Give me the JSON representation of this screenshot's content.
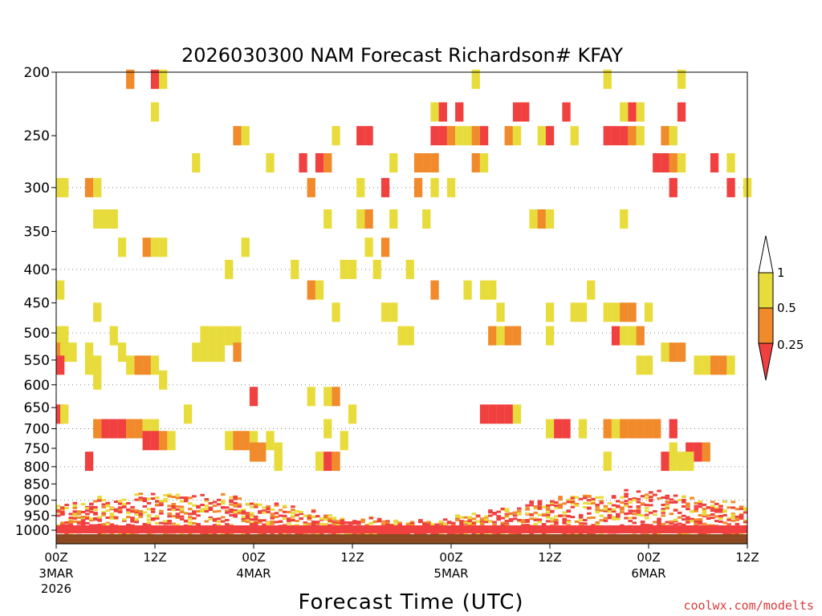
{
  "chart_data": {
    "type": "heatmap",
    "title": "2026030300 NAM Forecast Richardson# KFAY",
    "xlabel": "Forecast Time (UTC)",
    "ylabel": "",
    "credit": "coolwx.com/modelts",
    "x_unit": "forecast hour",
    "xlim": [
      0,
      84
    ],
    "y_unit": "pressure (hPa)",
    "ylim": [
      1050,
      200
    ],
    "y_ticks": [
      200,
      250,
      300,
      350,
      400,
      450,
      500,
      550,
      600,
      650,
      700,
      750,
      800,
      850,
      900,
      950,
      1000
    ],
    "grid_levels": [
      300,
      400,
      500,
      600,
      700,
      800,
      900
    ],
    "x_ticks": [
      {
        "hour": 0,
        "label": "00Z",
        "sub": [
          "3MAR",
          "2026"
        ]
      },
      {
        "hour": 12,
        "label": "12Z",
        "sub": []
      },
      {
        "hour": 24,
        "label": "00Z",
        "sub": [
          "4MAR"
        ]
      },
      {
        "hour": 36,
        "label": "12Z",
        "sub": []
      },
      {
        "hour": 48,
        "label": "00Z",
        "sub": [
          "5MAR"
        ]
      },
      {
        "hour": 60,
        "label": "12Z",
        "sub": []
      },
      {
        "hour": 72,
        "label": "00Z",
        "sub": [
          "6MAR"
        ]
      },
      {
        "hour": 84,
        "label": "12Z",
        "sub": []
      }
    ],
    "colorbar": {
      "bins": [
        {
          "range": "0.5-1",
          "color": "#e8dc3c"
        },
        {
          "range": "0.25-0.5",
          "color": "#f08a2a"
        },
        {
          "range": "<0.25",
          "color": "#f04040"
        }
      ],
      "labels": [
        "1",
        "0.5",
        "0.25"
      ]
    },
    "colors": {
      "high": "#e8dc3c",
      "mid": "#f08a2a",
      "low": "#f04040",
      "ground": "#8b4a22"
    },
    "cells": [
      {
        "h": 9,
        "p": 205,
        "c": "mid"
      },
      {
        "h": 12,
        "p": 205,
        "c": "low"
      },
      {
        "h": 13,
        "p": 205,
        "c": "high"
      },
      {
        "h": 51,
        "p": 205,
        "c": "high"
      },
      {
        "h": 67,
        "p": 205,
        "c": "high"
      },
      {
        "h": 76,
        "p": 205,
        "c": "high"
      },
      {
        "h": 12,
        "p": 230,
        "c": "high"
      },
      {
        "h": 46,
        "p": 230,
        "c": "high"
      },
      {
        "h": 47,
        "p": 230,
        "c": "low"
      },
      {
        "h": 49,
        "p": 230,
        "c": "low"
      },
      {
        "h": 56,
        "p": 230,
        "c": "low"
      },
      {
        "h": 57,
        "p": 230,
        "c": "low"
      },
      {
        "h": 62,
        "p": 230,
        "c": "low"
      },
      {
        "h": 69,
        "p": 230,
        "c": "high"
      },
      {
        "h": 70,
        "p": 230,
        "c": "low"
      },
      {
        "h": 71,
        "p": 230,
        "c": "high"
      },
      {
        "h": 76,
        "p": 230,
        "c": "low"
      },
      {
        "h": 22,
        "p": 250,
        "c": "mid"
      },
      {
        "h": 23,
        "p": 250,
        "c": "high"
      },
      {
        "h": 34,
        "p": 250,
        "c": "high"
      },
      {
        "h": 37,
        "p": 250,
        "c": "low"
      },
      {
        "h": 38,
        "p": 250,
        "c": "low"
      },
      {
        "h": 46,
        "p": 250,
        "c": "low"
      },
      {
        "h": 47,
        "p": 250,
        "c": "low"
      },
      {
        "h": 48,
        "p": 250,
        "c": "mid"
      },
      {
        "h": 49,
        "p": 250,
        "c": "high"
      },
      {
        "h": 50,
        "p": 250,
        "c": "high"
      },
      {
        "h": 51,
        "p": 250,
        "c": "mid"
      },
      {
        "h": 52,
        "p": 250,
        "c": "low"
      },
      {
        "h": 55,
        "p": 250,
        "c": "mid"
      },
      {
        "h": 56,
        "p": 250,
        "c": "high"
      },
      {
        "h": 59,
        "p": 250,
        "c": "high"
      },
      {
        "h": 60,
        "p": 250,
        "c": "low"
      },
      {
        "h": 63,
        "p": 250,
        "c": "high"
      },
      {
        "h": 67,
        "p": 250,
        "c": "low"
      },
      {
        "h": 68,
        "p": 250,
        "c": "low"
      },
      {
        "h": 69,
        "p": 250,
        "c": "low"
      },
      {
        "h": 70,
        "p": 250,
        "c": "mid"
      },
      {
        "h": 71,
        "p": 250,
        "c": "high"
      },
      {
        "h": 74,
        "p": 250,
        "c": "mid"
      },
      {
        "h": 75,
        "p": 250,
        "c": "high"
      },
      {
        "h": 17,
        "p": 275,
        "c": "high"
      },
      {
        "h": 26,
        "p": 275,
        "c": "high"
      },
      {
        "h": 30,
        "p": 275,
        "c": "low"
      },
      {
        "h": 32,
        "p": 275,
        "c": "low"
      },
      {
        "h": 33,
        "p": 275,
        "c": "mid"
      },
      {
        "h": 41,
        "p": 275,
        "c": "high"
      },
      {
        "h": 44,
        "p": 275,
        "c": "mid"
      },
      {
        "h": 45,
        "p": 275,
        "c": "mid"
      },
      {
        "h": 46,
        "p": 275,
        "c": "mid"
      },
      {
        "h": 51,
        "p": 275,
        "c": "mid"
      },
      {
        "h": 52,
        "p": 275,
        "c": "high"
      },
      {
        "h": 73,
        "p": 275,
        "c": "low"
      },
      {
        "h": 74,
        "p": 275,
        "c": "low"
      },
      {
        "h": 75,
        "p": 275,
        "c": "mid"
      },
      {
        "h": 76,
        "p": 275,
        "c": "high"
      },
      {
        "h": 80,
        "p": 275,
        "c": "low"
      },
      {
        "h": 82,
        "p": 275,
        "c": "high"
      },
      {
        "h": 0,
        "p": 300,
        "c": "high"
      },
      {
        "h": 1,
        "p": 300,
        "c": "high"
      },
      {
        "h": 4,
        "p": 300,
        "c": "mid"
      },
      {
        "h": 5,
        "p": 300,
        "c": "high"
      },
      {
        "h": 31,
        "p": 300,
        "c": "mid"
      },
      {
        "h": 37,
        "p": 300,
        "c": "high"
      },
      {
        "h": 40,
        "p": 300,
        "c": "low"
      },
      {
        "h": 44,
        "p": 300,
        "c": "mid"
      },
      {
        "h": 46,
        "p": 300,
        "c": "high"
      },
      {
        "h": 48,
        "p": 300,
        "c": "high"
      },
      {
        "h": 75,
        "p": 300,
        "c": "low"
      },
      {
        "h": 82,
        "p": 300,
        "c": "low"
      },
      {
        "h": 84,
        "p": 300,
        "c": "high"
      },
      {
        "h": 5,
        "p": 335,
        "c": "high"
      },
      {
        "h": 6,
        "p": 335,
        "c": "high"
      },
      {
        "h": 7,
        "p": 335,
        "c": "high"
      },
      {
        "h": 33,
        "p": 335,
        "c": "high"
      },
      {
        "h": 37,
        "p": 335,
        "c": "high"
      },
      {
        "h": 38,
        "p": 335,
        "c": "mid"
      },
      {
        "h": 41,
        "p": 335,
        "c": "high"
      },
      {
        "h": 45,
        "p": 335,
        "c": "high"
      },
      {
        "h": 58,
        "p": 335,
        "c": "high"
      },
      {
        "h": 59,
        "p": 335,
        "c": "mid"
      },
      {
        "h": 60,
        "p": 335,
        "c": "high"
      },
      {
        "h": 69,
        "p": 335,
        "c": "high"
      },
      {
        "h": 8,
        "p": 370,
        "c": "high"
      },
      {
        "h": 11,
        "p": 370,
        "c": "mid"
      },
      {
        "h": 12,
        "p": 370,
        "c": "high"
      },
      {
        "h": 13,
        "p": 370,
        "c": "high"
      },
      {
        "h": 23,
        "p": 370,
        "c": "high"
      },
      {
        "h": 38,
        "p": 370,
        "c": "high"
      },
      {
        "h": 40,
        "p": 370,
        "c": "mid"
      },
      {
        "h": 21,
        "p": 400,
        "c": "high"
      },
      {
        "h": 29,
        "p": 400,
        "c": "high"
      },
      {
        "h": 35,
        "p": 400,
        "c": "high"
      },
      {
        "h": 36,
        "p": 400,
        "c": "high"
      },
      {
        "h": 39,
        "p": 400,
        "c": "high"
      },
      {
        "h": 43,
        "p": 400,
        "c": "high"
      },
      {
        "h": 31,
        "p": 430,
        "c": "mid"
      },
      {
        "h": 32,
        "p": 430,
        "c": "high"
      },
      {
        "h": 46,
        "p": 430,
        "c": "mid"
      },
      {
        "h": 50,
        "p": 430,
        "c": "high"
      },
      {
        "h": 52,
        "p": 430,
        "c": "high"
      },
      {
        "h": 53,
        "p": 430,
        "c": "high"
      },
      {
        "h": 65,
        "p": 430,
        "c": "high"
      },
      {
        "h": 0,
        "p": 430,
        "c": "high"
      },
      {
        "h": 5,
        "p": 465,
        "c": "high"
      },
      {
        "h": 34,
        "p": 465,
        "c": "high"
      },
      {
        "h": 40,
        "p": 465,
        "c": "high"
      },
      {
        "h": 41,
        "p": 465,
        "c": "high"
      },
      {
        "h": 54,
        "p": 465,
        "c": "high"
      },
      {
        "h": 60,
        "p": 465,
        "c": "high"
      },
      {
        "h": 63,
        "p": 465,
        "c": "high"
      },
      {
        "h": 64,
        "p": 465,
        "c": "high"
      },
      {
        "h": 67,
        "p": 465,
        "c": "high"
      },
      {
        "h": 68,
        "p": 465,
        "c": "high"
      },
      {
        "h": 69,
        "p": 465,
        "c": "mid"
      },
      {
        "h": 70,
        "p": 465,
        "c": "mid"
      },
      {
        "h": 72,
        "p": 465,
        "c": "high"
      },
      {
        "h": 0,
        "p": 505,
        "c": "high"
      },
      {
        "h": 1,
        "p": 505,
        "c": "high"
      },
      {
        "h": 7,
        "p": 505,
        "c": "high"
      },
      {
        "h": 18,
        "p": 505,
        "c": "high"
      },
      {
        "h": 19,
        "p": 505,
        "c": "high"
      },
      {
        "h": 20,
        "p": 505,
        "c": "high"
      },
      {
        "h": 21,
        "p": 505,
        "c": "high"
      },
      {
        "h": 22,
        "p": 505,
        "c": "high"
      },
      {
        "h": 42,
        "p": 505,
        "c": "high"
      },
      {
        "h": 43,
        "p": 505,
        "c": "high"
      },
      {
        "h": 53,
        "p": 505,
        "c": "mid"
      },
      {
        "h": 54,
        "p": 505,
        "c": "high"
      },
      {
        "h": 55,
        "p": 505,
        "c": "mid"
      },
      {
        "h": 56,
        "p": 505,
        "c": "mid"
      },
      {
        "h": 60,
        "p": 505,
        "c": "high"
      },
      {
        "h": 68,
        "p": 505,
        "c": "low"
      },
      {
        "h": 69,
        "p": 505,
        "c": "high"
      },
      {
        "h": 70,
        "p": 505,
        "c": "high"
      },
      {
        "h": 71,
        "p": 505,
        "c": "mid"
      },
      {
        "h": 0,
        "p": 535,
        "c": "mid"
      },
      {
        "h": 1,
        "p": 535,
        "c": "high"
      },
      {
        "h": 2,
        "p": 535,
        "c": "high"
      },
      {
        "h": 4,
        "p": 535,
        "c": "high"
      },
      {
        "h": 8,
        "p": 535,
        "c": "high"
      },
      {
        "h": 17,
        "p": 535,
        "c": "high"
      },
      {
        "h": 18,
        "p": 535,
        "c": "high"
      },
      {
        "h": 19,
        "p": 535,
        "c": "high"
      },
      {
        "h": 20,
        "p": 535,
        "c": "high"
      },
      {
        "h": 22,
        "p": 535,
        "c": "mid"
      },
      {
        "h": 74,
        "p": 535,
        "c": "high"
      },
      {
        "h": 75,
        "p": 535,
        "c": "mid"
      },
      {
        "h": 76,
        "p": 535,
        "c": "mid"
      },
      {
        "h": 0,
        "p": 560,
        "c": "low"
      },
      {
        "h": 4,
        "p": 560,
        "c": "high"
      },
      {
        "h": 5,
        "p": 560,
        "c": "high"
      },
      {
        "h": 9,
        "p": 560,
        "c": "high"
      },
      {
        "h": 10,
        "p": 560,
        "c": "mid"
      },
      {
        "h": 11,
        "p": 560,
        "c": "mid"
      },
      {
        "h": 12,
        "p": 560,
        "c": "high"
      },
      {
        "h": 71,
        "p": 560,
        "c": "high"
      },
      {
        "h": 72,
        "p": 560,
        "c": "high"
      },
      {
        "h": 78,
        "p": 560,
        "c": "high"
      },
      {
        "h": 79,
        "p": 560,
        "c": "high"
      },
      {
        "h": 80,
        "p": 560,
        "c": "mid"
      },
      {
        "h": 81,
        "p": 560,
        "c": "mid"
      },
      {
        "h": 82,
        "p": 560,
        "c": "high"
      },
      {
        "h": 5,
        "p": 590,
        "c": "high"
      },
      {
        "h": 13,
        "p": 590,
        "c": "high"
      },
      {
        "h": 24,
        "p": 625,
        "c": "low"
      },
      {
        "h": 31,
        "p": 625,
        "c": "high"
      },
      {
        "h": 33,
        "p": 625,
        "c": "high"
      },
      {
        "h": 34,
        "p": 625,
        "c": "mid"
      },
      {
        "h": 0,
        "p": 665,
        "c": "low"
      },
      {
        "h": 1,
        "p": 665,
        "c": "high"
      },
      {
        "h": 16,
        "p": 665,
        "c": "high"
      },
      {
        "h": 36,
        "p": 665,
        "c": "high"
      },
      {
        "h": 52,
        "p": 665,
        "c": "low"
      },
      {
        "h": 53,
        "p": 665,
        "c": "low"
      },
      {
        "h": 54,
        "p": 665,
        "c": "low"
      },
      {
        "h": 55,
        "p": 665,
        "c": "low"
      },
      {
        "h": 56,
        "p": 665,
        "c": "high"
      },
      {
        "h": 5,
        "p": 700,
        "c": "mid"
      },
      {
        "h": 6,
        "p": 700,
        "c": "low"
      },
      {
        "h": 7,
        "p": 700,
        "c": "low"
      },
      {
        "h": 8,
        "p": 700,
        "c": "low"
      },
      {
        "h": 9,
        "p": 700,
        "c": "mid"
      },
      {
        "h": 10,
        "p": 700,
        "c": "mid"
      },
      {
        "h": 11,
        "p": 700,
        "c": "high"
      },
      {
        "h": 12,
        "p": 700,
        "c": "high"
      },
      {
        "h": 33,
        "p": 700,
        "c": "high"
      },
      {
        "h": 60,
        "p": 700,
        "c": "high"
      },
      {
        "h": 61,
        "p": 700,
        "c": "low"
      },
      {
        "h": 62,
        "p": 700,
        "c": "low"
      },
      {
        "h": 64,
        "p": 700,
        "c": "high"
      },
      {
        "h": 67,
        "p": 700,
        "c": "mid"
      },
      {
        "h": 68,
        "p": 700,
        "c": "high"
      },
      {
        "h": 69,
        "p": 700,
        "c": "mid"
      },
      {
        "h": 70,
        "p": 700,
        "c": "mid"
      },
      {
        "h": 71,
        "p": 700,
        "c": "mid"
      },
      {
        "h": 72,
        "p": 700,
        "c": "mid"
      },
      {
        "h": 73,
        "p": 700,
        "c": "mid"
      },
      {
        "h": 75,
        "p": 700,
        "c": "low"
      },
      {
        "h": 11,
        "p": 730,
        "c": "low"
      },
      {
        "h": 12,
        "p": 730,
        "c": "low"
      },
      {
        "h": 13,
        "p": 730,
        "c": "mid"
      },
      {
        "h": 14,
        "p": 730,
        "c": "high"
      },
      {
        "h": 21,
        "p": 730,
        "c": "high"
      },
      {
        "h": 22,
        "p": 730,
        "c": "mid"
      },
      {
        "h": 23,
        "p": 730,
        "c": "mid"
      },
      {
        "h": 24,
        "p": 730,
        "c": "high"
      },
      {
        "h": 26,
        "p": 730,
        "c": "high"
      },
      {
        "h": 35,
        "p": 730,
        "c": "high"
      },
      {
        "h": 24,
        "p": 760,
        "c": "mid"
      },
      {
        "h": 25,
        "p": 760,
        "c": "mid"
      },
      {
        "h": 27,
        "p": 760,
        "c": "high"
      },
      {
        "h": 75,
        "p": 760,
        "c": "high"
      },
      {
        "h": 77,
        "p": 760,
        "c": "low"
      },
      {
        "h": 78,
        "p": 760,
        "c": "low"
      },
      {
        "h": 79,
        "p": 760,
        "c": "mid"
      },
      {
        "h": 4,
        "p": 785,
        "c": "low"
      },
      {
        "h": 27,
        "p": 785,
        "c": "high"
      },
      {
        "h": 32,
        "p": 785,
        "c": "high"
      },
      {
        "h": 33,
        "p": 785,
        "c": "low"
      },
      {
        "h": 34,
        "p": 785,
        "c": "mid"
      },
      {
        "h": 67,
        "p": 785,
        "c": "high"
      },
      {
        "h": 74,
        "p": 785,
        "c": "low"
      },
      {
        "h": 75,
        "p": 785,
        "c": "high"
      },
      {
        "h": 76,
        "p": 785,
        "c": "high"
      },
      {
        "h": 77,
        "p": 785,
        "c": "high"
      }
    ]
  }
}
